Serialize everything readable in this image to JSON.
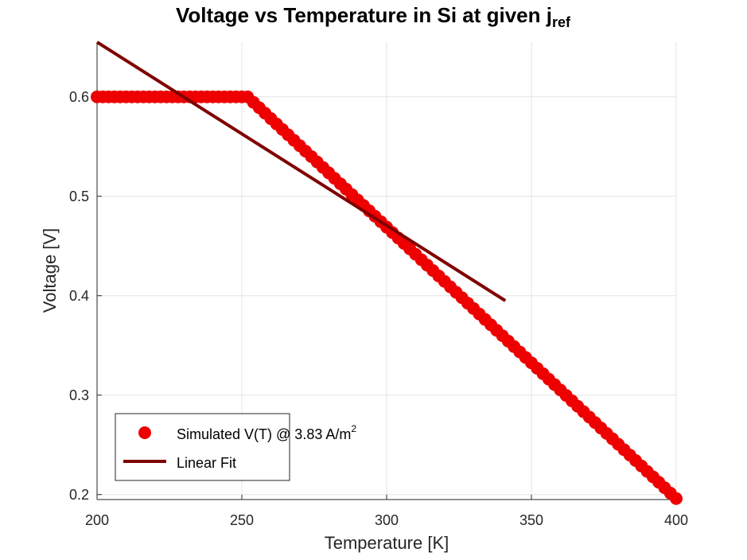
{
  "chart_data": {
    "type": "scatter",
    "title": "Voltage vs Temperature in Si at given j",
    "title_subscript": "ref",
    "xlabel": "Temperature [K]",
    "ylabel": "Voltage [V]",
    "xlim": [
      200,
      400
    ],
    "ylim": [
      0.195,
      0.655
    ],
    "xticks": [
      200,
      250,
      300,
      350,
      400
    ],
    "yticks": [
      0.2,
      0.3,
      0.4,
      0.5,
      0.6
    ],
    "grid": true,
    "legend_position": "bottom-left",
    "colors": {
      "simulated": "#ee0000",
      "fit": "#800000"
    },
    "series": [
      {
        "name": "Simulated V(T) @ 3.83 A/m",
        "name_superscript": "2",
        "kind": "markers",
        "x_start": 200,
        "x_end": 400,
        "x_step": 2,
        "plateau_value": 0.6,
        "plateau_end": 252,
        "end_value": 0.196
      },
      {
        "name": "Linear Fit",
        "kind": "line",
        "x": [
          200,
          341
        ],
        "y": [
          0.655,
          0.395
        ]
      }
    ]
  }
}
